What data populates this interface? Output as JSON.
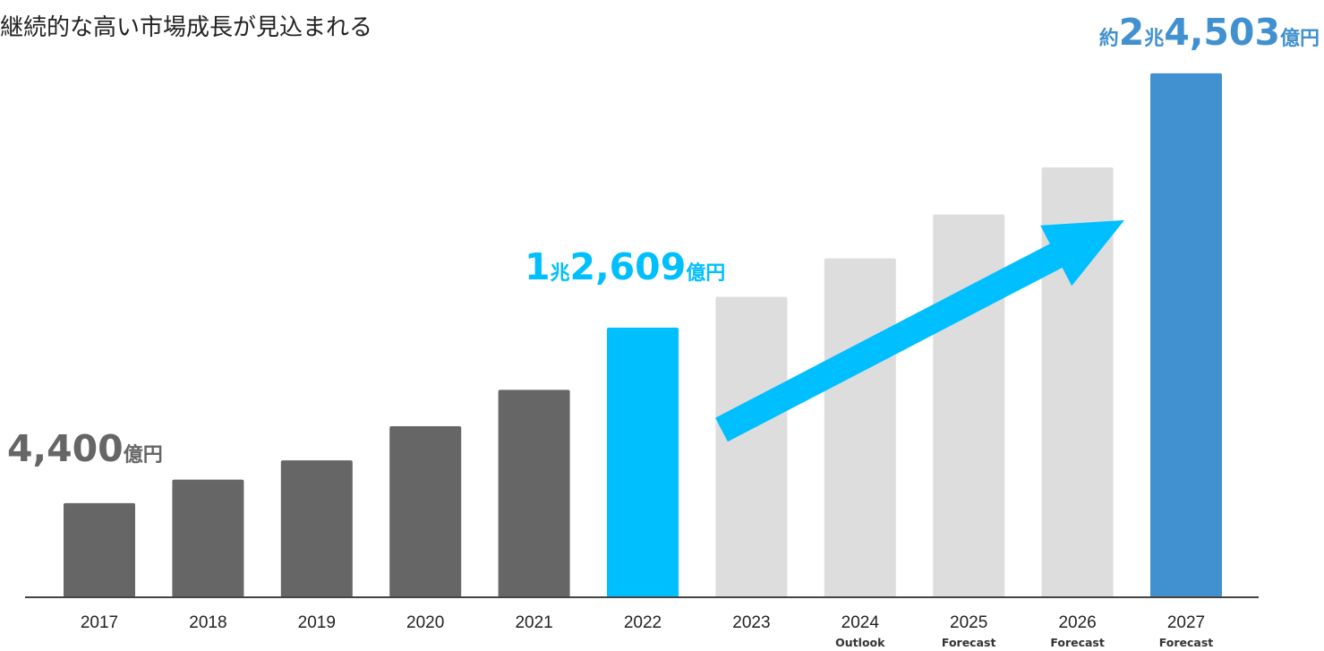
{
  "title": "継続的な高い市場成長が見込まれる",
  "colors": {
    "past": "#666666",
    "highlight": "#00BFFF",
    "future": "#DDDDDD",
    "final": "#4190D0",
    "arrow": "#00BFFF",
    "axis": "#444444",
    "callout_past": "#666666",
    "callout_highlight": "#00BFFF",
    "callout_final": "#4190D0"
  },
  "chart_data": {
    "type": "bar",
    "categories": [
      "2017",
      "2018",
      "2019",
      "2020",
      "2021",
      "2022",
      "2023",
      "2024",
      "2025",
      "2026",
      "2027"
    ],
    "sublabels": [
      "",
      "",
      "",
      "",
      "",
      "",
      "",
      "Outlook",
      "Forecast",
      "Forecast",
      "Forecast"
    ],
    "values": [
      4400,
      5500,
      6400,
      8000,
      9700,
      12609,
      14050,
      15850,
      17900,
      20100,
      24503
    ],
    "bar_styles": [
      "past",
      "past",
      "past",
      "past",
      "past",
      "highlight",
      "future",
      "future",
      "future",
      "future",
      "final"
    ],
    "ylim": [
      0,
      25000
    ],
    "title": "継続的な高い市場成長が見込まれる",
    "xlabel": "",
    "ylabel": "",
    "grid": false,
    "trend_arrow": {
      "from_category": "2022",
      "to_category": "2027",
      "color": "#00BFFF"
    },
    "annotations": [
      {
        "category": "2017",
        "parts": [
          {
            "text": "4,400",
            "size": "big"
          },
          {
            "text": "億円",
            "size": "small"
          }
        ],
        "style": "callout_past"
      },
      {
        "category": "2022",
        "parts": [
          {
            "text": "1",
            "size": "big"
          },
          {
            "text": "兆",
            "size": "small"
          },
          {
            "text": "2,609",
            "size": "big"
          },
          {
            "text": "億円",
            "size": "small"
          }
        ],
        "style": "callout_highlight"
      },
      {
        "category": "2027",
        "parts": [
          {
            "text": "約",
            "size": "small"
          },
          {
            "text": "2",
            "size": "big"
          },
          {
            "text": "兆",
            "size": "small"
          },
          {
            "text": "4,503",
            "size": "big"
          },
          {
            "text": "億円",
            "size": "small"
          }
        ],
        "style": "callout_final"
      }
    ]
  }
}
